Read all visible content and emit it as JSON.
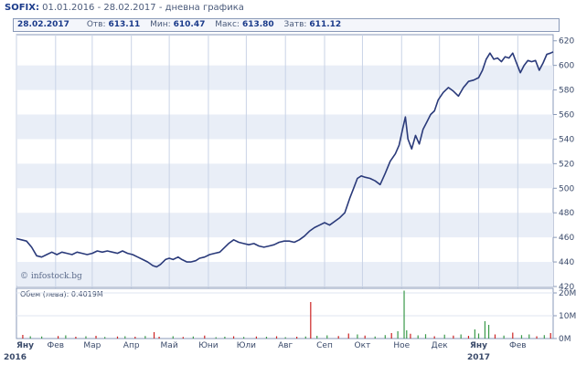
{
  "header": {
    "symbol": "SOFIX:",
    "subtitle": "01.01.2016 - 28.02.2017 - дневна графика",
    "date": "28.02.2017",
    "open_label": "Отв:",
    "open_value": "613.11",
    "low_label": "Мин:",
    "low_value": "610.47",
    "high_label": "Макс:",
    "high_value": "613.80",
    "close_label": "Затв:",
    "close_value": "611.12"
  },
  "watermark": "© infostock.bg",
  "volume_label": "Обем (лева): 0.4019M",
  "colors": {
    "line": "#2a3a7a",
    "band": "#e9eef7",
    "grid": "#c9d3e6",
    "vol_up": "#3a9a4a",
    "vol_down": "#cc2222"
  },
  "chart_data": [
    {
      "type": "line",
      "x_unit": "day_index",
      "x_start_label": "01.01.2016",
      "xlim": [
        0,
        425
      ],
      "ylim": [
        420,
        625
      ],
      "y_ticks": [
        420,
        440,
        460,
        480,
        500,
        520,
        540,
        560,
        580,
        600,
        620
      ],
      "x_ticks": [
        {
          "x": 0,
          "label": "Яну",
          "sublabel": "2016"
        },
        {
          "x": 31,
          "label": "Фев"
        },
        {
          "x": 60,
          "label": "Мар"
        },
        {
          "x": 91,
          "label": "Апр"
        },
        {
          "x": 121,
          "label": "Май"
        },
        {
          "x": 152,
          "label": "Юни"
        },
        {
          "x": 182,
          "label": "Юли"
        },
        {
          "x": 213,
          "label": "Авг"
        },
        {
          "x": 244,
          "label": "Сеп"
        },
        {
          "x": 274,
          "label": "Окт"
        },
        {
          "x": 305,
          "label": "Ное"
        },
        {
          "x": 335,
          "label": "Дек"
        },
        {
          "x": 366,
          "label": "Яну",
          "sublabel": "2017"
        },
        {
          "x": 397,
          "label": "Фев"
        }
      ],
      "points": [
        [
          0,
          459
        ],
        [
          4,
          458
        ],
        [
          8,
          457
        ],
        [
          12,
          452
        ],
        [
          16,
          445
        ],
        [
          20,
          444
        ],
        [
          24,
          446
        ],
        [
          28,
          448
        ],
        [
          32,
          446
        ],
        [
          36,
          448
        ],
        [
          40,
          447
        ],
        [
          44,
          446
        ],
        [
          48,
          448
        ],
        [
          52,
          447
        ],
        [
          56,
          446
        ],
        [
          60,
          447
        ],
        [
          64,
          449
        ],
        [
          68,
          448
        ],
        [
          72,
          449
        ],
        [
          76,
          448
        ],
        [
          80,
          447
        ],
        [
          84,
          449
        ],
        [
          88,
          447
        ],
        [
          92,
          446
        ],
        [
          96,
          444
        ],
        [
          100,
          442
        ],
        [
          104,
          440
        ],
        [
          108,
          437
        ],
        [
          111,
          436
        ],
        [
          114,
          438
        ],
        [
          118,
          442
        ],
        [
          121,
          443
        ],
        [
          124,
          442
        ],
        [
          128,
          444
        ],
        [
          131,
          442
        ],
        [
          135,
          440
        ],
        [
          138,
          440
        ],
        [
          142,
          441
        ],
        [
          145,
          443
        ],
        [
          149,
          444
        ],
        [
          153,
          446
        ],
        [
          157,
          447
        ],
        [
          161,
          448
        ],
        [
          164,
          451
        ],
        [
          168,
          455
        ],
        [
          172,
          458
        ],
        [
          176,
          456
        ],
        [
          180,
          455
        ],
        [
          184,
          454
        ],
        [
          188,
          455
        ],
        [
          192,
          453
        ],
        [
          196,
          452
        ],
        [
          200,
          453
        ],
        [
          204,
          454
        ],
        [
          208,
          456
        ],
        [
          212,
          457
        ],
        [
          216,
          457
        ],
        [
          220,
          456
        ],
        [
          224,
          458
        ],
        [
          228,
          461
        ],
        [
          232,
          465
        ],
        [
          236,
          468
        ],
        [
          240,
          470
        ],
        [
          244,
          472
        ],
        [
          248,
          470
        ],
        [
          252,
          473
        ],
        [
          256,
          476
        ],
        [
          260,
          480
        ],
        [
          264,
          492
        ],
        [
          267,
          500
        ],
        [
          270,
          508
        ],
        [
          273,
          510
        ],
        [
          276,
          509
        ],
        [
          280,
          508
        ],
        [
          284,
          506
        ],
        [
          288,
          503
        ],
        [
          292,
          512
        ],
        [
          296,
          522
        ],
        [
          300,
          528
        ],
        [
          303,
          535
        ],
        [
          306,
          549
        ],
        [
          308,
          558
        ],
        [
          310,
          540
        ],
        [
          313,
          532
        ],
        [
          316,
          543
        ],
        [
          319,
          536
        ],
        [
          322,
          548
        ],
        [
          325,
          554
        ],
        [
          328,
          560
        ],
        [
          331,
          563
        ],
        [
          334,
          572
        ],
        [
          338,
          578
        ],
        [
          342,
          582
        ],
        [
          346,
          579
        ],
        [
          350,
          575
        ],
        [
          354,
          582
        ],
        [
          358,
          587
        ],
        [
          362,
          588
        ],
        [
          366,
          590
        ],
        [
          369,
          596
        ],
        [
          372,
          605
        ],
        [
          375,
          610
        ],
        [
          378,
          605
        ],
        [
          381,
          606
        ],
        [
          384,
          603
        ],
        [
          387,
          607
        ],
        [
          390,
          606
        ],
        [
          393,
          610
        ],
        [
          396,
          602
        ],
        [
          399,
          594
        ],
        [
          402,
          600
        ],
        [
          405,
          604
        ],
        [
          408,
          603
        ],
        [
          411,
          604
        ],
        [
          414,
          596
        ],
        [
          417,
          602
        ],
        [
          420,
          609
        ],
        [
          423,
          610
        ],
        [
          425,
          611
        ]
      ]
    },
    {
      "type": "bar",
      "ylim": [
        0,
        22
      ],
      "y_unit": "M",
      "y_ticks": [
        {
          "value": 0,
          "label": "0M"
        },
        {
          "value": 10,
          "label": "10M"
        },
        {
          "value": 20,
          "label": "20M"
        }
      ],
      "bars": [
        [
          5,
          1.6,
          "down"
        ],
        [
          11,
          1.0,
          "up"
        ],
        [
          20,
          0.9,
          "up"
        ],
        [
          33,
          1.1,
          "down"
        ],
        [
          39,
          1.4,
          "up"
        ],
        [
          47,
          0.8,
          "down"
        ],
        [
          55,
          1.0,
          "up"
        ],
        [
          63,
          1.2,
          "down"
        ],
        [
          70,
          0.7,
          "up"
        ],
        [
          80,
          0.9,
          "down"
        ],
        [
          86,
          1.0,
          "up"
        ],
        [
          94,
          0.8,
          "down"
        ],
        [
          102,
          1.1,
          "up"
        ],
        [
          109,
          2.8,
          "down"
        ],
        [
          113,
          0.8,
          "down"
        ],
        [
          124,
          1.0,
          "up"
        ],
        [
          132,
          0.7,
          "down"
        ],
        [
          140,
          0.9,
          "up"
        ],
        [
          149,
          1.3,
          "down"
        ],
        [
          158,
          0.6,
          "up"
        ],
        [
          165,
          0.8,
          "up"
        ],
        [
          172,
          1.0,
          "down"
        ],
        [
          180,
          0.7,
          "up"
        ],
        [
          190,
          0.9,
          "down"
        ],
        [
          198,
          0.8,
          "up"
        ],
        [
          206,
          1.0,
          "down"
        ],
        [
          213,
          0.6,
          "up"
        ],
        [
          222,
          0.8,
          "down"
        ],
        [
          229,
          0.9,
          "up"
        ],
        [
          233,
          16,
          "down"
        ],
        [
          238,
          1.2,
          "up"
        ],
        [
          246,
          1.4,
          "up"
        ],
        [
          255,
          1.1,
          "down"
        ],
        [
          263,
          2.2,
          "down"
        ],
        [
          270,
          1.8,
          "up"
        ],
        [
          276,
          1.3,
          "down"
        ],
        [
          284,
          0.9,
          "up"
        ],
        [
          292,
          1.5,
          "up"
        ],
        [
          297,
          2.4,
          "down"
        ],
        [
          302,
          3.2,
          "up"
        ],
        [
          307,
          21,
          "up"
        ],
        [
          309,
          3.6,
          "up"
        ],
        [
          312,
          2.1,
          "down"
        ],
        [
          318,
          1.4,
          "up"
        ],
        [
          324,
          1.9,
          "up"
        ],
        [
          331,
          1.0,
          "down"
        ],
        [
          339,
          1.7,
          "up"
        ],
        [
          346,
          1.3,
          "down"
        ],
        [
          352,
          1.8,
          "up"
        ],
        [
          358,
          1.2,
          "down"
        ],
        [
          363,
          4.0,
          "up"
        ],
        [
          366,
          2.2,
          "up"
        ],
        [
          371,
          7.6,
          "up"
        ],
        [
          374,
          6.0,
          "up"
        ],
        [
          379,
          1.8,
          "down"
        ],
        [
          386,
          1.3,
          "up"
        ],
        [
          393,
          2.6,
          "down"
        ],
        [
          400,
          1.5,
          "up"
        ],
        [
          406,
          1.8,
          "up"
        ],
        [
          412,
          1.0,
          "down"
        ],
        [
          418,
          1.5,
          "up"
        ],
        [
          423,
          2.4,
          "down"
        ]
      ]
    }
  ]
}
